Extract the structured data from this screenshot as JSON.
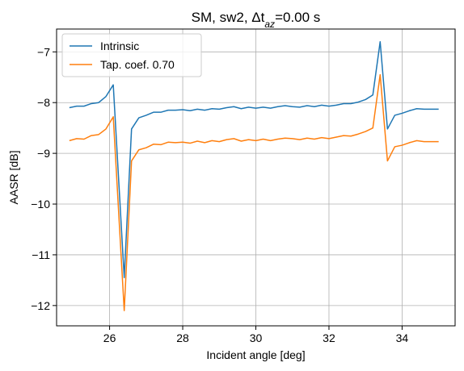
{
  "chart_data": {
    "type": "line",
    "title": "SM, sw2, Δt",
    "title_sub": "az",
    "title_suffix": "=0.00 s",
    "xlabel": "Incident angle [deg]",
    "ylabel": "AASR [dB]",
    "xlim": [
      24.55,
      35.45
    ],
    "ylim": [
      -12.4,
      -6.55
    ],
    "xticks": [
      26,
      28,
      30,
      32,
      34
    ],
    "yticks": [
      -12,
      -11,
      -10,
      -9,
      -8,
      -7
    ],
    "grid": true,
    "legend_position": "top-left",
    "x": [
      24.9,
      25.1,
      25.3,
      25.5,
      25.7,
      25.9,
      26.1,
      26.4,
      26.6,
      26.8,
      27.0,
      27.2,
      27.4,
      27.6,
      27.8,
      28.0,
      28.2,
      28.4,
      28.6,
      28.8,
      29.0,
      29.2,
      29.4,
      29.6,
      29.8,
      30.0,
      30.2,
      30.4,
      30.6,
      30.8,
      31.0,
      31.2,
      31.4,
      31.6,
      31.8,
      32.0,
      32.2,
      32.4,
      32.6,
      32.8,
      33.0,
      33.2,
      33.4,
      33.6,
      33.8,
      34.0,
      34.2,
      34.4,
      34.6,
      34.8,
      35.0
    ],
    "series": [
      {
        "name": "Intrinsic",
        "color": "#1f77b4",
        "values": [
          -8.1,
          -8.07,
          -8.07,
          -8.02,
          -8.0,
          -7.88,
          -7.65,
          -11.45,
          -8.52,
          -8.3,
          -8.25,
          -8.19,
          -8.19,
          -8.15,
          -8.15,
          -8.14,
          -8.16,
          -8.13,
          -8.15,
          -8.12,
          -8.13,
          -8.1,
          -8.08,
          -8.12,
          -8.09,
          -8.11,
          -8.09,
          -8.11,
          -8.08,
          -8.06,
          -8.08,
          -8.09,
          -8.06,
          -8.08,
          -8.05,
          -8.07,
          -8.05,
          -8.02,
          -8.02,
          -7.99,
          -7.94,
          -7.85,
          -6.8,
          -8.52,
          -8.25,
          -8.21,
          -8.16,
          -8.12,
          -8.13,
          -8.13,
          -8.13
        ]
      },
      {
        "name": "Tap. coef. 0.70",
        "color": "#ff7f0e",
        "values": [
          -8.75,
          -8.71,
          -8.72,
          -8.65,
          -8.63,
          -8.52,
          -8.28,
          -12.1,
          -9.15,
          -8.93,
          -8.89,
          -8.82,
          -8.83,
          -8.78,
          -8.79,
          -8.78,
          -8.8,
          -8.76,
          -8.79,
          -8.75,
          -8.77,
          -8.73,
          -8.71,
          -8.76,
          -8.73,
          -8.75,
          -8.72,
          -8.75,
          -8.72,
          -8.7,
          -8.71,
          -8.73,
          -8.7,
          -8.72,
          -8.69,
          -8.71,
          -8.68,
          -8.65,
          -8.66,
          -8.62,
          -8.57,
          -8.5,
          -7.45,
          -9.15,
          -8.87,
          -8.84,
          -8.79,
          -8.75,
          -8.77,
          -8.77,
          -8.77
        ]
      }
    ]
  }
}
